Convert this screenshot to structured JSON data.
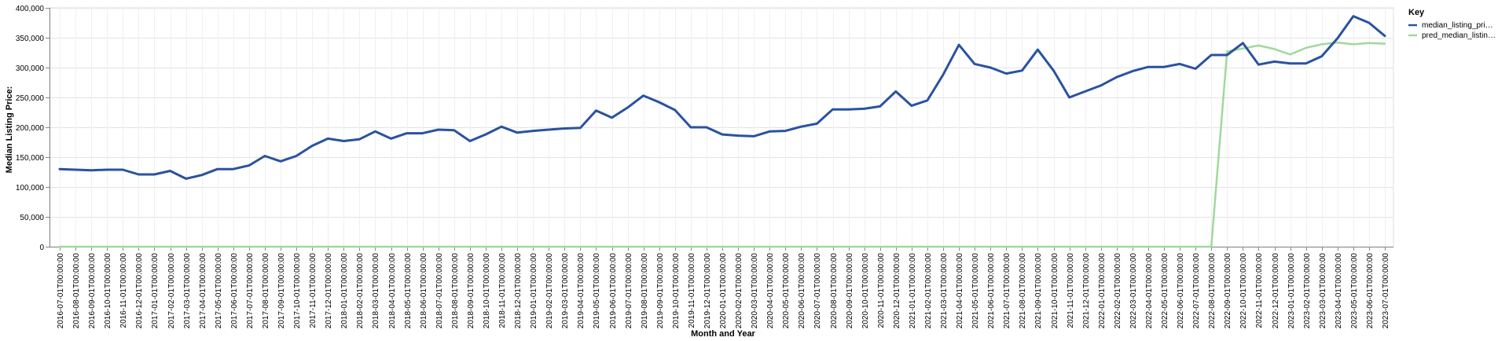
{
  "chart_data": {
    "type": "line",
    "xlabel": "Month and Year",
    "ylabel": "Median Listing Price:",
    "ylim": [
      0,
      400000
    ],
    "y_ticks": [
      "0",
      "50,000",
      "100,000",
      "150,000",
      "200,000",
      "250,000",
      "300,000",
      "350,000",
      "400,000"
    ],
    "grid": true,
    "legend": {
      "title": "Key",
      "position": "right",
      "labels": [
        "median_listing_pri…",
        "pred_median_listin…"
      ]
    },
    "colors": {
      "median_listing_price": "#2a52a0",
      "pred_median_listing_price": "#a0d99b"
    },
    "x": [
      "2016-07-01T00:00:00",
      "2016-08-01T00:00:00",
      "2016-09-01T00:00:00",
      "2016-10-01T00:00:00",
      "2016-11-01T00:00:00",
      "2016-12-01T00:00:00",
      "2017-01-01T00:00:00",
      "2017-02-01T00:00:00",
      "2017-03-01T00:00:00",
      "2017-04-01T00:00:00",
      "2017-05-01T00:00:00",
      "2017-06-01T00:00:00",
      "2017-07-01T00:00:00",
      "2017-08-01T00:00:00",
      "2017-09-01T00:00:00",
      "2017-10-01T00:00:00",
      "2017-11-01T00:00:00",
      "2017-12-01T00:00:00",
      "2018-01-01T00:00:00",
      "2018-02-01T00:00:00",
      "2018-03-01T00:00:00",
      "2018-04-01T00:00:00",
      "2018-05-01T00:00:00",
      "2018-06-01T00:00:00",
      "2018-07-01T00:00:00",
      "2018-08-01T00:00:00",
      "2018-09-01T00:00:00",
      "2018-10-01T00:00:00",
      "2018-11-01T00:00:00",
      "2018-12-01T00:00:00",
      "2019-01-01T00:00:00",
      "2019-02-01T00:00:00",
      "2019-03-01T00:00:00",
      "2019-04-01T00:00:00",
      "2019-05-01T00:00:00",
      "2019-06-01T00:00:00",
      "2019-07-01T00:00:00",
      "2019-08-01T00:00:00",
      "2019-09-01T00:00:00",
      "2019-10-01T00:00:00",
      "2019-11-01T00:00:00",
      "2019-12-01T00:00:00",
      "2020-01-01T00:00:00",
      "2020-02-01T00:00:00",
      "2020-03-01T00:00:00",
      "2020-04-01T00:00:00",
      "2020-05-01T00:00:00",
      "2020-06-01T00:00:00",
      "2020-07-01T00:00:00",
      "2020-08-01T00:00:00",
      "2020-09-01T00:00:00",
      "2020-10-01T00:00:00",
      "2020-11-01T00:00:00",
      "2020-12-01T00:00:00",
      "2021-01-01T00:00:00",
      "2021-02-01T00:00:00",
      "2021-03-01T00:00:00",
      "2021-04-01T00:00:00",
      "2021-05-01T00:00:00",
      "2021-06-01T00:00:00",
      "2021-07-01T00:00:00",
      "2021-08-01T00:00:00",
      "2021-09-01T00:00:00",
      "2021-10-01T00:00:00",
      "2021-11-01T00:00:00",
      "2021-12-01T00:00:00",
      "2022-01-01T00:00:00",
      "2022-02-01T00:00:00",
      "2022-03-01T00:00:00",
      "2022-04-01T00:00:00",
      "2022-05-01T00:00:00",
      "2022-06-01T00:00:00",
      "2022-07-01T00:00:00",
      "2022-08-01T00:00:00",
      "2022-09-01T00:00:00",
      "2022-10-01T00:00:00",
      "2022-11-01T00:00:00",
      "2022-12-01T00:00:00",
      "2023-01-01T00:00:00",
      "2023-02-01T00:00:00",
      "2023-03-01T00:00:00",
      "2023-04-01T00:00:00",
      "2023-05-01T00:00:00",
      "2023-06-01T00:00:00",
      "2023-07-01T00:00:00"
    ],
    "series": [
      {
        "name": "median_listing_pri…",
        "values": [
          130000,
          129000,
          128000,
          129000,
          129000,
          121000,
          121000,
          127000,
          114000,
          120000,
          130000,
          130000,
          136000,
          152000,
          143000,
          152000,
          169000,
          181000,
          177000,
          180000,
          193000,
          181000,
          190000,
          190000,
          196000,
          195000,
          177000,
          188000,
          201000,
          191000,
          194000,
          196000,
          198000,
          199000,
          228000,
          216000,
          233000,
          253000,
          242000,
          229000,
          200000,
          200000,
          188000,
          186000,
          185000,
          193000,
          194000,
          201000,
          206000,
          230000,
          230000,
          231000,
          235000,
          260000,
          236000,
          245000,
          288000,
          338000,
          306000,
          300000,
          290000,
          295000,
          330000,
          295000,
          250000,
          260000,
          270000,
          284000,
          294000,
          301000,
          301000,
          306000,
          298000,
          321000,
          321000,
          341000,
          305000,
          310000,
          307000,
          307000,
          319000,
          349000,
          386000,
          375000,
          353000
        ]
      },
      {
        "name": "pred_median_listin…",
        "values": [
          0,
          0,
          0,
          0,
          0,
          0,
          0,
          0,
          0,
          0,
          0,
          0,
          0,
          0,
          0,
          0,
          0,
          0,
          0,
          0,
          0,
          0,
          0,
          0,
          0,
          0,
          0,
          0,
          0,
          0,
          0,
          0,
          0,
          0,
          0,
          0,
          0,
          0,
          0,
          0,
          0,
          0,
          0,
          0,
          0,
          0,
          0,
          0,
          0,
          0,
          0,
          0,
          0,
          0,
          0,
          0,
          0,
          0,
          0,
          0,
          0,
          0,
          0,
          0,
          0,
          0,
          0,
          0,
          0,
          0,
          0,
          0,
          0,
          0,
          327000,
          332000,
          337000,
          331000,
          322000,
          333000,
          339000,
          342000,
          339000,
          341000,
          340000
        ]
      }
    ]
  }
}
